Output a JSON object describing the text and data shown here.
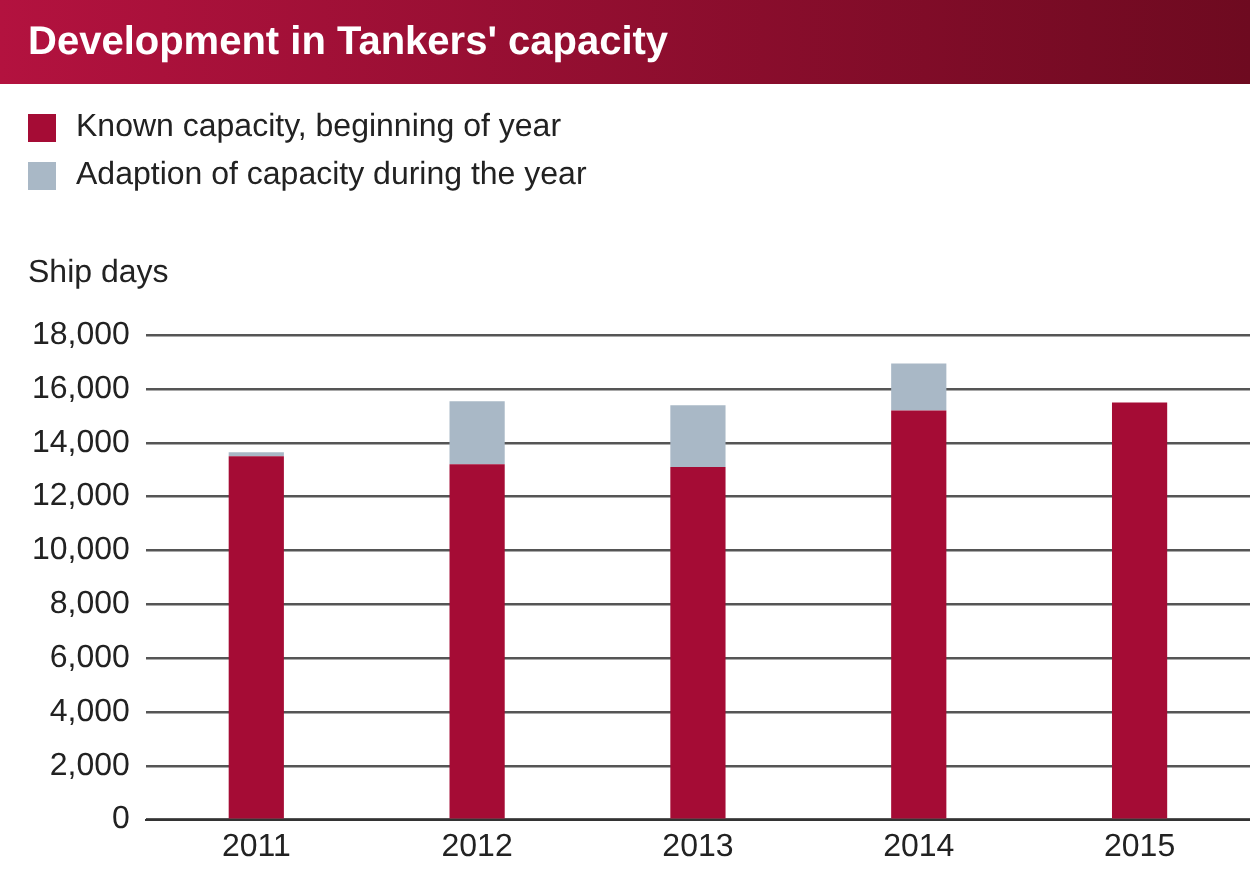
{
  "chart_data": {
    "type": "bar",
    "title": "Development in Tankers' capacity",
    "ylabel": "Ship days",
    "categories": [
      "2011",
      "2012",
      "2013",
      "2014",
      "2015"
    ],
    "stacked": true,
    "series": [
      {
        "name": "Known capacity, beginning of year",
        "color": "#a50c35",
        "values": [
          13500,
          13200,
          13100,
          15200,
          15500
        ]
      },
      {
        "name": "Adaption of capacity during the year",
        "color": "#a9b8c6",
        "values": [
          150,
          2350,
          2300,
          1750,
          0
        ]
      }
    ],
    "ylim": [
      0,
      18000
    ],
    "yticks": [
      0,
      {
        "value": 2000,
        "label": "2,000"
      },
      {
        "value": 4000,
        "label": "4,000"
      },
      {
        "value": 6000,
        "label": "6,000"
      },
      {
        "value": 8000,
        "label": "8,000"
      },
      {
        "value": 10000,
        "label": "10,000"
      },
      {
        "value": 12000,
        "label": "12,000"
      },
      {
        "value": 14000,
        "label": "14,000"
      },
      {
        "value": 16000,
        "label": "16,000"
      },
      {
        "value": 18000,
        "label": "18,000"
      }
    ],
    "grid": "y",
    "legend": "top left"
  }
}
